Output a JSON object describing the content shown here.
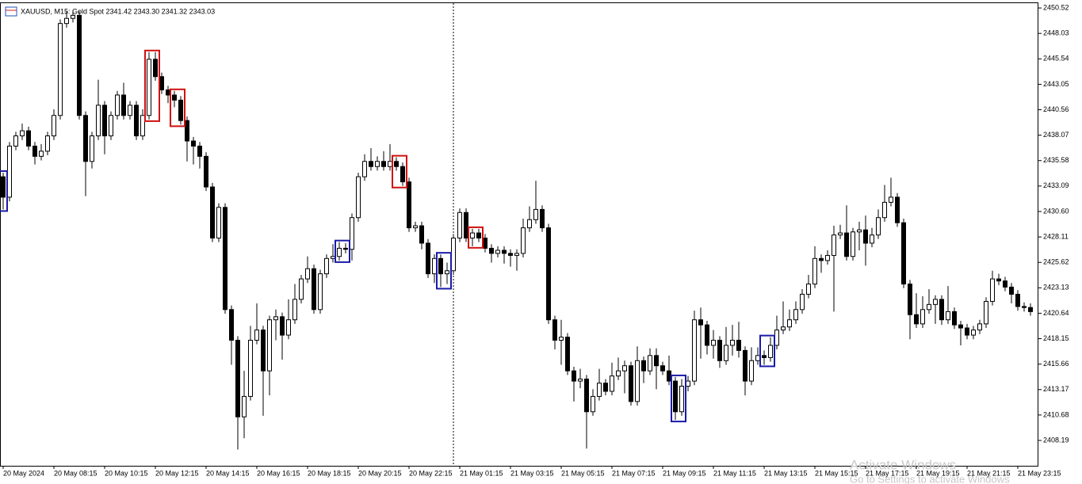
{
  "chart_data": {
    "type": "candlestick",
    "title": "XAUUSD, M15:  Gold Spot  2341.42 2343.30 2341.32 2343.03",
    "watermark": [
      "Activate Windows",
      "Go to Settings to activate Windows"
    ],
    "categories": [
      "20 May 2024",
      null,
      null,
      null,
      null,
      null,
      null,
      null,
      "20 May 08:15",
      null,
      null,
      null,
      null,
      null,
      null,
      null,
      "20 May 10:15",
      null,
      null,
      null,
      null,
      null,
      null,
      null,
      "20 May 12:15",
      null,
      null,
      null,
      null,
      null,
      null,
      null,
      "20 May 14:15",
      null,
      null,
      null,
      null,
      null,
      null,
      null,
      "20 May 16:15",
      null,
      null,
      null,
      null,
      null,
      null,
      null,
      "20 May 18:15",
      null,
      null,
      null,
      null,
      null,
      null,
      null,
      "20 May 20:15",
      null,
      null,
      null,
      null,
      null,
      null,
      null,
      "20 May 22:15",
      null,
      null,
      null,
      null,
      null,
      null,
      null,
      "21 May 01:15",
      null,
      null,
      null,
      null,
      null,
      null,
      null,
      "21 May 03:15",
      null,
      null,
      null,
      null,
      null,
      null,
      null,
      "21 May 05:15",
      null,
      null,
      null,
      null,
      null,
      null,
      null,
      "21 May 07:15",
      null,
      null,
      null,
      null,
      null,
      null,
      null,
      "21 May 09:15",
      null,
      null,
      null,
      null,
      null,
      null,
      null,
      "21 May 11:15",
      null,
      null,
      null,
      null,
      null,
      null,
      null,
      "21 May 13:15",
      null,
      null,
      null,
      null,
      null,
      null,
      null,
      "21 May 15:15",
      null,
      null,
      null,
      null,
      null,
      null,
      null,
      "21 May 17:15",
      null,
      null,
      null,
      null,
      null,
      null,
      null,
      "21 May 19:15",
      null,
      null,
      null,
      null,
      null,
      null,
      null,
      "21 May 21:15",
      null,
      null,
      null,
      null,
      null,
      null,
      null,
      "21 May 23:15",
      null,
      null
    ],
    "open": [
      2434,
      2432,
      2437,
      2438,
      2438.5,
      2437,
      2436,
      2436.5,
      2438,
      2440,
      2449,
      2449.5,
      2449.8,
      2440,
      2435.5,
      2438,
      2441,
      2438,
      2440,
      2442,
      2440,
      2441,
      2438,
      2440,
      2445.5,
      2443.8,
      2442.5,
      2442,
      2441.5,
      2439.5,
      2437.5,
      2437,
      2436,
      2433,
      2428,
      2431,
      2421,
      2418,
      2410.5,
      2412.5,
      2418,
      2419,
      2415,
      2420,
      2420.3,
      2418.5,
      2420,
      2422,
      2424,
      2425,
      2421,
      2424.5,
      2426,
      2426.2,
      2427,
      2426.9,
      2430,
      2434,
      2435.5,
      2435,
      2435.5,
      2435,
      2435.5,
      2435,
      2433.5,
      2429,
      2429.2,
      2427.5,
      2424.5,
      2426,
      2424.5,
      2424.8,
      2428,
      2430.5,
      2428,
      2428.5,
      2428,
      2427,
      2426.5,
      2426.8,
      2426.5,
      2426.3,
      2426.5,
      2429,
      2429.8,
      2430.8,
      2429,
      2420,
      2418,
      2418.3,
      2415,
      2414,
      2414.2,
      2411,
      2412.5,
      2413.8,
      2413,
      2414.5,
      2415,
      2415.5,
      2412,
      2416,
      2415,
      2416.5,
      2415.5,
      2415,
      2414,
      2411,
      2413.5,
      2414,
      2420,
      2419.5,
      2417.5,
      2418,
      2416,
      2417.5,
      2418,
      2417,
      2414,
      2416,
      2416.5,
      2416.3,
      2417.5,
      2419,
      2419.3,
      2420,
      2421,
      2422.5,
      2423.5,
      2426,
      2425.8,
      2426.3,
      2428.3,
      2428.5,
      2426.2,
      2428.6,
      2428.8,
      2427.5,
      2428.3,
      2430,
      2431.5,
      2432,
      2429.5,
      2423.5,
      2420.5,
      2419.6,
      2421,
      2421.5,
      2422,
      2420,
      2420.8,
      2419.5,
      2419.2,
      2418.5,
      2419,
      2419.6,
      2421.8,
      2424,
      2423.8,
      2423.2,
      2422.5,
      2421.3,
      2421.2
    ],
    "high": [
      2434.4,
      2437.4,
      2438.4,
      2439.2,
      2438.9,
      2437.4,
      2437.2,
      2438.4,
      2440.6,
      2449.4,
      2450.2,
      2450.3,
      2450.2,
      2440.4,
      2438.4,
      2443.5,
      2441.4,
      2440.4,
      2442.4,
      2443.2,
      2441.4,
      2441.4,
      2440.6,
      2446.2,
      2446.2,
      2444.2,
      2442.9,
      2442.4,
      2441.9,
      2439.9,
      2437.9,
      2437.4,
      2436.4,
      2433.4,
      2431.4,
      2431.4,
      2421.4,
      2418.4,
      2415,
      2419.4,
      2421.6,
      2419.4,
      2420.4,
      2421,
      2420.7,
      2422,
      2423.5,
      2424.4,
      2426.2,
      2425.4,
      2424.9,
      2426.4,
      2427.4,
      2427.6,
      2427.5,
      2430.4,
      2434.4,
      2436.2,
      2436.8,
      2436,
      2436.5,
      2437.2,
      2435.9,
      2435.4,
      2433.9,
      2429.6,
      2429.6,
      2427.9,
      2426.4,
      2426.4,
      2425.6,
      2428.4,
      2430.9,
      2430.9,
      2428.9,
      2428.9,
      2428.4,
      2427.4,
      2427.2,
      2427.2,
      2426.9,
      2426.9,
      2429.9,
      2431.1,
      2433.6,
      2431.2,
      2429.4,
      2420.4,
      2420,
      2418.7,
      2415.4,
      2415.2,
      2414.6,
      2413.2,
      2415.2,
      2414.2,
      2415.8,
      2416.3,
      2416,
      2415.9,
      2417.4,
      2416.4,
      2417.2,
      2417.2,
      2415.9,
      2416.5,
      2414.4,
      2414.2,
      2414.5,
      2420.9,
      2421.2,
      2419.9,
      2419,
      2418.4,
      2419.3,
      2419.5,
      2419.8,
      2417.4,
      2417.3,
      2417.3,
      2417,
      2418.3,
      2420.4,
      2421.8,
      2421,
      2421.8,
      2423,
      2424.4,
      2427.2,
      2426.4,
      2426.8,
      2429.2,
      2429.3,
      2431.2,
      2429,
      2429.6,
      2430.2,
      2429,
      2430.8,
      2433.2,
      2433.9,
      2432.4,
      2429.9,
      2423.9,
      2422.6,
      2422.3,
      2423,
      2422.4,
      2422.4,
      2423.3,
      2421.2,
      2419.9,
      2419.6,
      2419.4,
      2420,
      2422.2,
      2424.8,
      2424.5,
      2424.2,
      2423.6,
      2422.9,
      2421.7,
      2421.6
    ],
    "low": [
      2430.8,
      2431.6,
      2436.6,
      2437.6,
      2436.6,
      2435.2,
      2435.6,
      2436.1,
      2437.6,
      2439.6,
      2448.6,
      2449.1,
      2439.6,
      2432.1,
      2434.8,
      2437.6,
      2436.2,
      2437.6,
      2439.6,
      2439.6,
      2439.6,
      2437.6,
      2437.6,
      2439.6,
      2443.4,
      2442.1,
      2441.2,
      2440.8,
      2439.1,
      2435.5,
      2435.2,
      2434.8,
      2432.6,
      2427.6,
      2427.6,
      2420.6,
      2415.6,
      2407.3,
      2408.4,
      2412.1,
      2417.6,
      2410.6,
      2412.6,
      2418,
      2416.1,
      2418.1,
      2419.6,
      2421.6,
      2423.6,
      2420.6,
      2420.6,
      2424.1,
      2425.6,
      2425.8,
      2426.5,
      2425.8,
      2429.6,
      2433.6,
      2434.6,
      2434.6,
      2434.6,
      2434.6,
      2434.6,
      2433.1,
      2428.6,
      2428.6,
      2426.9,
      2424.1,
      2423.6,
      2423.2,
      2423.5,
      2424.4,
      2427.6,
      2427.6,
      2427.2,
      2427.6,
      2426.6,
      2425.6,
      2426.1,
      2425.5,
      2425.2,
      2424.8,
      2426.1,
      2428.6,
      2429.4,
      2428.6,
      2419.6,
      2417.1,
      2415.6,
      2414.6,
      2412,
      2413.3,
      2407.4,
      2410.6,
      2412.1,
      2412.6,
      2412.6,
      2414.1,
      2412.8,
      2411.6,
      2411.6,
      2413.8,
      2414.6,
      2413.2,
      2414.6,
      2413.6,
      2410.2,
      2410.6,
      2413,
      2413.6,
      2416.2,
      2416.6,
      2416.2,
      2415.3,
      2415.6,
      2416.5,
      2416.3,
      2412.6,
      2413.6,
      2415.6,
      2415.6,
      2415.9,
      2417.1,
      2418.6,
      2418.9,
      2419.6,
      2420.6,
      2422.1,
      2423.1,
      2424.6,
      2425.4,
      2420.8,
      2427.9,
      2425.8,
      2425.8,
      2426.8,
      2425.3,
      2427.1,
      2427.9,
      2429.6,
      2431.1,
      2429.1,
      2423.1,
      2418.1,
      2419.2,
      2419.2,
      2420.6,
      2419.6,
      2419.5,
      2419.6,
      2419.1,
      2417.5,
      2418.1,
      2418.1,
      2418.6,
      2419.2,
      2421.4,
      2423.4,
      2422.8,
      2421.6,
      2420.9,
      2420.8,
      2420.4
    ],
    "close": [
      2432,
      2437,
      2438,
      2438.5,
      2437,
      2436,
      2436.5,
      2438,
      2440,
      2449,
      2449.5,
      2449.8,
      2440,
      2435.5,
      2438,
      2441,
      2438,
      2440,
      2442,
      2440,
      2441,
      2438,
      2440,
      2445.5,
      2443.8,
      2442.5,
      2442,
      2441.5,
      2439.5,
      2437.5,
      2437,
      2436,
      2433,
      2428,
      2431,
      2421,
      2418,
      2410.5,
      2412.5,
      2418,
      2419,
      2415,
      2420,
      2420.3,
      2418.5,
      2420,
      2422,
      2424,
      2425,
      2421,
      2424.5,
      2426,
      2426.2,
      2427,
      2426.9,
      2430,
      2434,
      2435.5,
      2435,
      2435.5,
      2435,
      2435.5,
      2435,
      2433.5,
      2429,
      2429.2,
      2427.5,
      2424.5,
      2426,
      2424.5,
      2424.8,
      2428,
      2430.5,
      2428,
      2428.5,
      2428,
      2427,
      2426.5,
      2426.8,
      2426.5,
      2426.3,
      2426.5,
      2429,
      2429.8,
      2430.8,
      2429,
      2420,
      2418,
      2418.3,
      2415,
      2414,
      2414.2,
      2411,
      2412.5,
      2413.8,
      2413,
      2414.5,
      2415,
      2415.5,
      2412,
      2416,
      2415,
      2416.5,
      2415.5,
      2415,
      2414,
      2411,
      2413.5,
      2414,
      2420,
      2419.5,
      2417.5,
      2418,
      2416,
      2417.5,
      2418,
      2417,
      2414,
      2416,
      2416.5,
      2416.3,
      2417.5,
      2419,
      2419.3,
      2420,
      2421,
      2422.5,
      2423.5,
      2426,
      2425.8,
      2426.3,
      2428.3,
      2428.5,
      2426.2,
      2428.6,
      2428.8,
      2427.5,
      2428.3,
      2430,
      2431.5,
      2432,
      2429.5,
      2423.5,
      2420.5,
      2419.6,
      2421,
      2421.5,
      2422,
      2420,
      2420.8,
      2419.5,
      2419.2,
      2418.5,
      2419,
      2419.6,
      2421.8,
      2424,
      2423.8,
      2423.2,
      2422.5,
      2421.3,
      2421.2,
      2420.8
    ],
    "up_color": "#ffffff",
    "down_color": "#000000",
    "wick_color": "#000000",
    "highlights": [
      {
        "from": 0,
        "to": 0,
        "color": "#1a1aa8"
      },
      {
        "from": 23,
        "to": 24,
        "color": "#d01010"
      },
      {
        "from": 27,
        "to": 28,
        "color": "#d01010"
      },
      {
        "from": 53,
        "to": 54,
        "color": "#1a1aa8"
      },
      {
        "from": 62,
        "to": 63,
        "color": "#d01010"
      },
      {
        "from": 69,
        "to": 70,
        "color": "#1a1aa8"
      },
      {
        "from": 74,
        "to": 75,
        "color": "#d01010"
      },
      {
        "from": 106,
        "to": 107,
        "color": "#1a1aa8"
      },
      {
        "from": 120,
        "to": 121,
        "color": "#1a1aa8"
      }
    ],
    "separator_index": 71,
    "ylim": [
      2405.71,
      2450.99
    ],
    "yticks": [
      2450.52,
      2448.03,
      2445.54,
      2443.05,
      2440.56,
      2438.07,
      2435.58,
      2433.09,
      {
        "value": 2430.6,
        "label": "2430.60"
      },
      2428.11,
      2425.62,
      2423.13,
      2420.64,
      2418.15,
      2415.66,
      2413.17,
      2410.68,
      2408.19
    ]
  }
}
